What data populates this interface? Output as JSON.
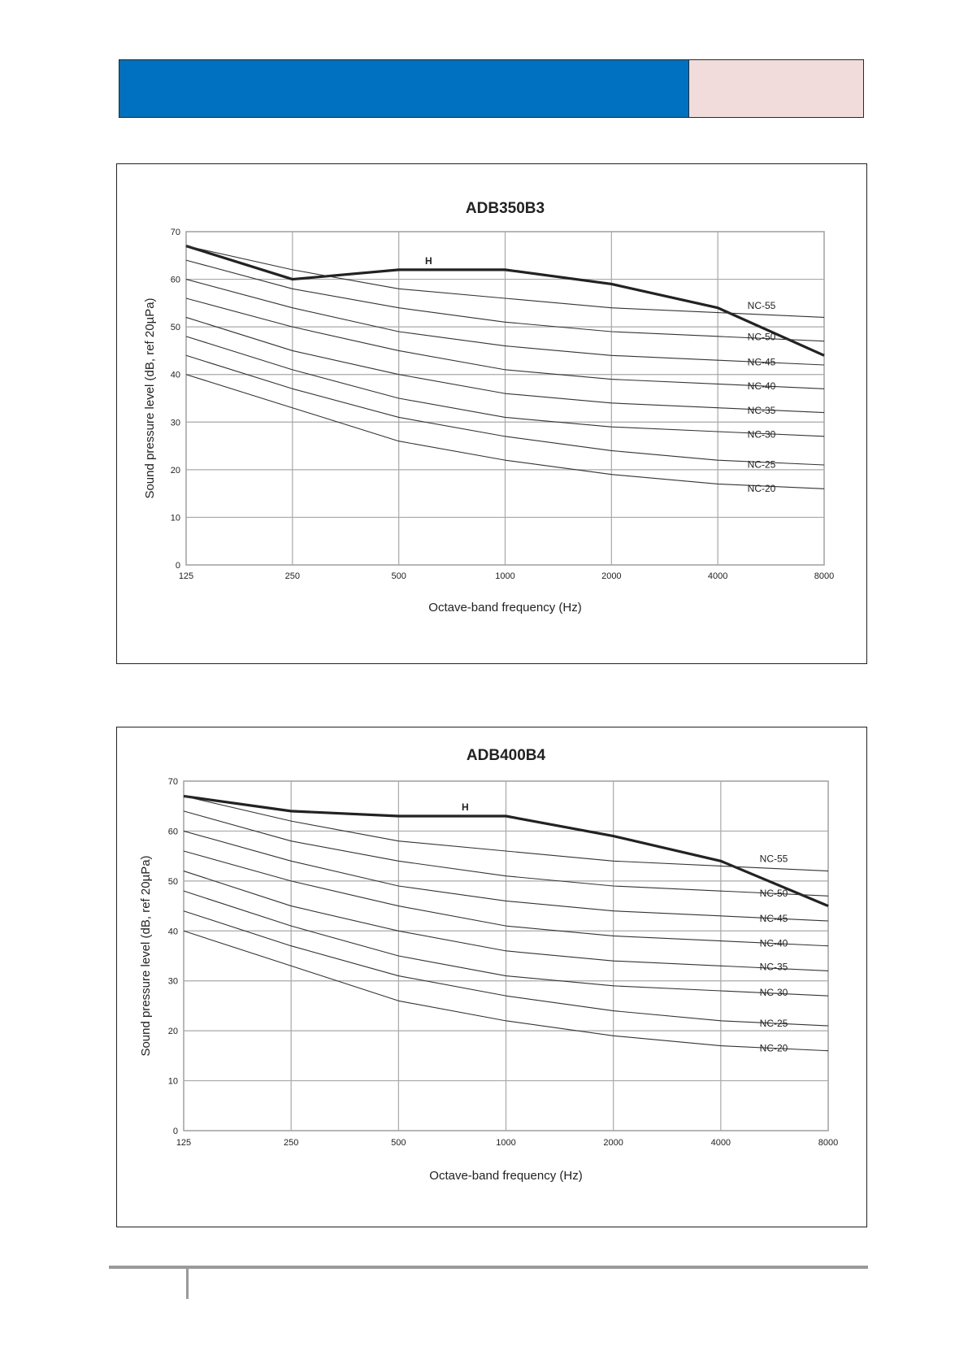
{
  "page": {
    "header": {
      "color_left": "#0070c0",
      "color_right": "#f2dcdb"
    }
  },
  "chart_data": [
    {
      "type": "line",
      "title": "ADB350B3",
      "xlabel": "Octave-band frequency (Hz)",
      "ylabel": "Sound pressure level (dB, ref 20µPa)",
      "x": [
        "125",
        "250",
        "500",
        "1000",
        "2000",
        "4000",
        "8000"
      ],
      "x_scale": "log2 (octave bands)",
      "ylim": [
        0,
        70
      ],
      "yticks": [
        0,
        10,
        20,
        30,
        40,
        50,
        60,
        70
      ],
      "grid": true,
      "series": [
        {
          "name": "H",
          "values": [
            67,
            60,
            62,
            62,
            59,
            54,
            44
          ],
          "color": "#222222",
          "bold": true
        },
        {
          "name": "NC-55",
          "values": [
            67,
            62,
            58,
            56,
            54,
            53,
            52
          ],
          "color": "#333333"
        },
        {
          "name": "NC-50",
          "values": [
            64,
            58,
            54,
            51,
            49,
            48,
            47
          ],
          "color": "#333333"
        },
        {
          "name": "NC-45",
          "values": [
            60,
            54,
            49,
            46,
            44,
            43,
            42
          ],
          "color": "#333333"
        },
        {
          "name": "NC-40",
          "values": [
            56,
            50,
            45,
            41,
            39,
            38,
            37
          ],
          "color": "#333333"
        },
        {
          "name": "NC-35",
          "values": [
            52,
            45,
            40,
            36,
            34,
            33,
            32
          ],
          "color": "#333333"
        },
        {
          "name": "NC-30",
          "values": [
            48,
            41,
            35,
            31,
            29,
            28,
            27
          ],
          "color": "#333333"
        },
        {
          "name": "NC-25",
          "values": [
            44,
            37,
            31,
            27,
            24,
            22,
            21
          ],
          "color": "#333333"
        },
        {
          "name": "NC-20",
          "values": [
            40,
            33,
            26,
            22,
            19,
            17,
            16
          ],
          "color": "#333333"
        }
      ]
    },
    {
      "type": "line",
      "title": "ADB400B4",
      "xlabel": "Octave-band frequency (Hz)",
      "ylabel": "Sound pressure level (dB, ref 20µPa)",
      "x": [
        "125",
        "250",
        "500",
        "1000",
        "2000",
        "4000",
        "8000"
      ],
      "x_scale": "log2 (octave bands)",
      "ylim": [
        0,
        70
      ],
      "yticks": [
        0,
        10,
        20,
        30,
        40,
        50,
        60,
        70
      ],
      "grid": true,
      "series": [
        {
          "name": "H",
          "values": [
            67,
            64,
            63,
            63,
            59,
            54,
            45
          ],
          "color": "#222222",
          "bold": true
        },
        {
          "name": "NC-55",
          "values": [
            67,
            62,
            58,
            56,
            54,
            53,
            52
          ],
          "color": "#333333"
        },
        {
          "name": "NC-50",
          "values": [
            64,
            58,
            54,
            51,
            49,
            48,
            47
          ],
          "color": "#333333"
        },
        {
          "name": "NC-45",
          "values": [
            60,
            54,
            49,
            46,
            44,
            43,
            42
          ],
          "color": "#333333"
        },
        {
          "name": "NC-40",
          "values": [
            56,
            50,
            45,
            41,
            39,
            38,
            37
          ],
          "color": "#333333"
        },
        {
          "name": "NC-35",
          "values": [
            52,
            45,
            40,
            36,
            34,
            33,
            32
          ],
          "color": "#333333"
        },
        {
          "name": "NC-30",
          "values": [
            48,
            41,
            35,
            31,
            29,
            28,
            27
          ],
          "color": "#333333"
        },
        {
          "name": "NC-25",
          "values": [
            44,
            37,
            31,
            27,
            24,
            22,
            21
          ],
          "color": "#333333"
        },
        {
          "name": "NC-20",
          "values": [
            40,
            33,
            26,
            22,
            19,
            17,
            16
          ],
          "color": "#333333"
        }
      ]
    }
  ]
}
